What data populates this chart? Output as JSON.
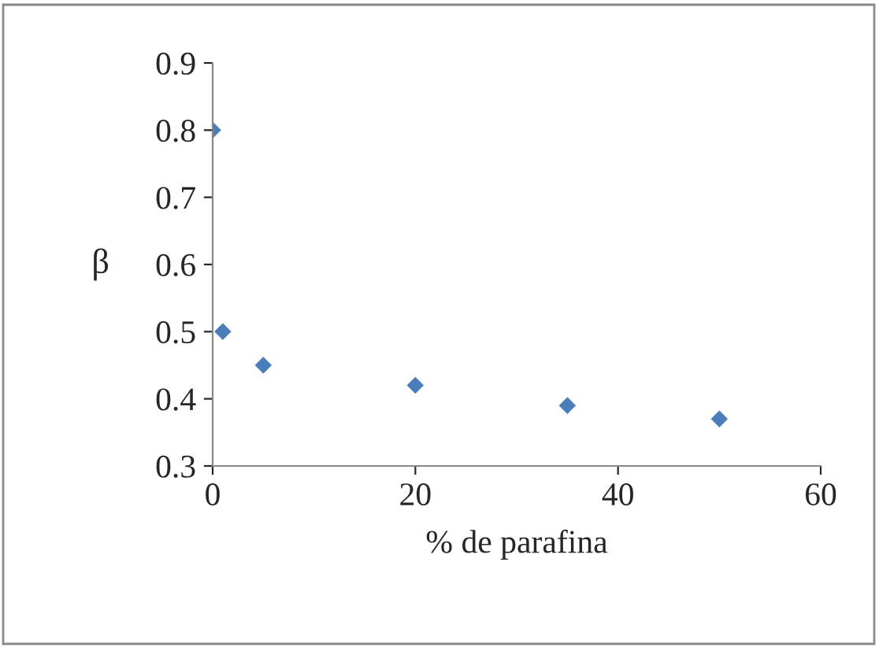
{
  "chart_data": {
    "type": "scatter",
    "xlabel": "% de parafina",
    "ylabel": "β",
    "x": [
      0,
      1,
      5,
      20,
      35,
      50
    ],
    "series": [
      {
        "color": "#4a7ebb",
        "values": [
          0.8,
          0.5,
          0.45,
          0.42,
          0.39,
          0.37
        ]
      }
    ],
    "marker": "diamond",
    "xlim": [
      0,
      60
    ],
    "xticks": [
      0,
      20,
      40,
      60
    ],
    "ylim": [
      0.3,
      0.9
    ],
    "yticks": [
      0.3,
      0.4,
      0.5,
      0.6,
      0.7,
      0.8,
      0.9
    ],
    "grid": false,
    "legend": false
  }
}
